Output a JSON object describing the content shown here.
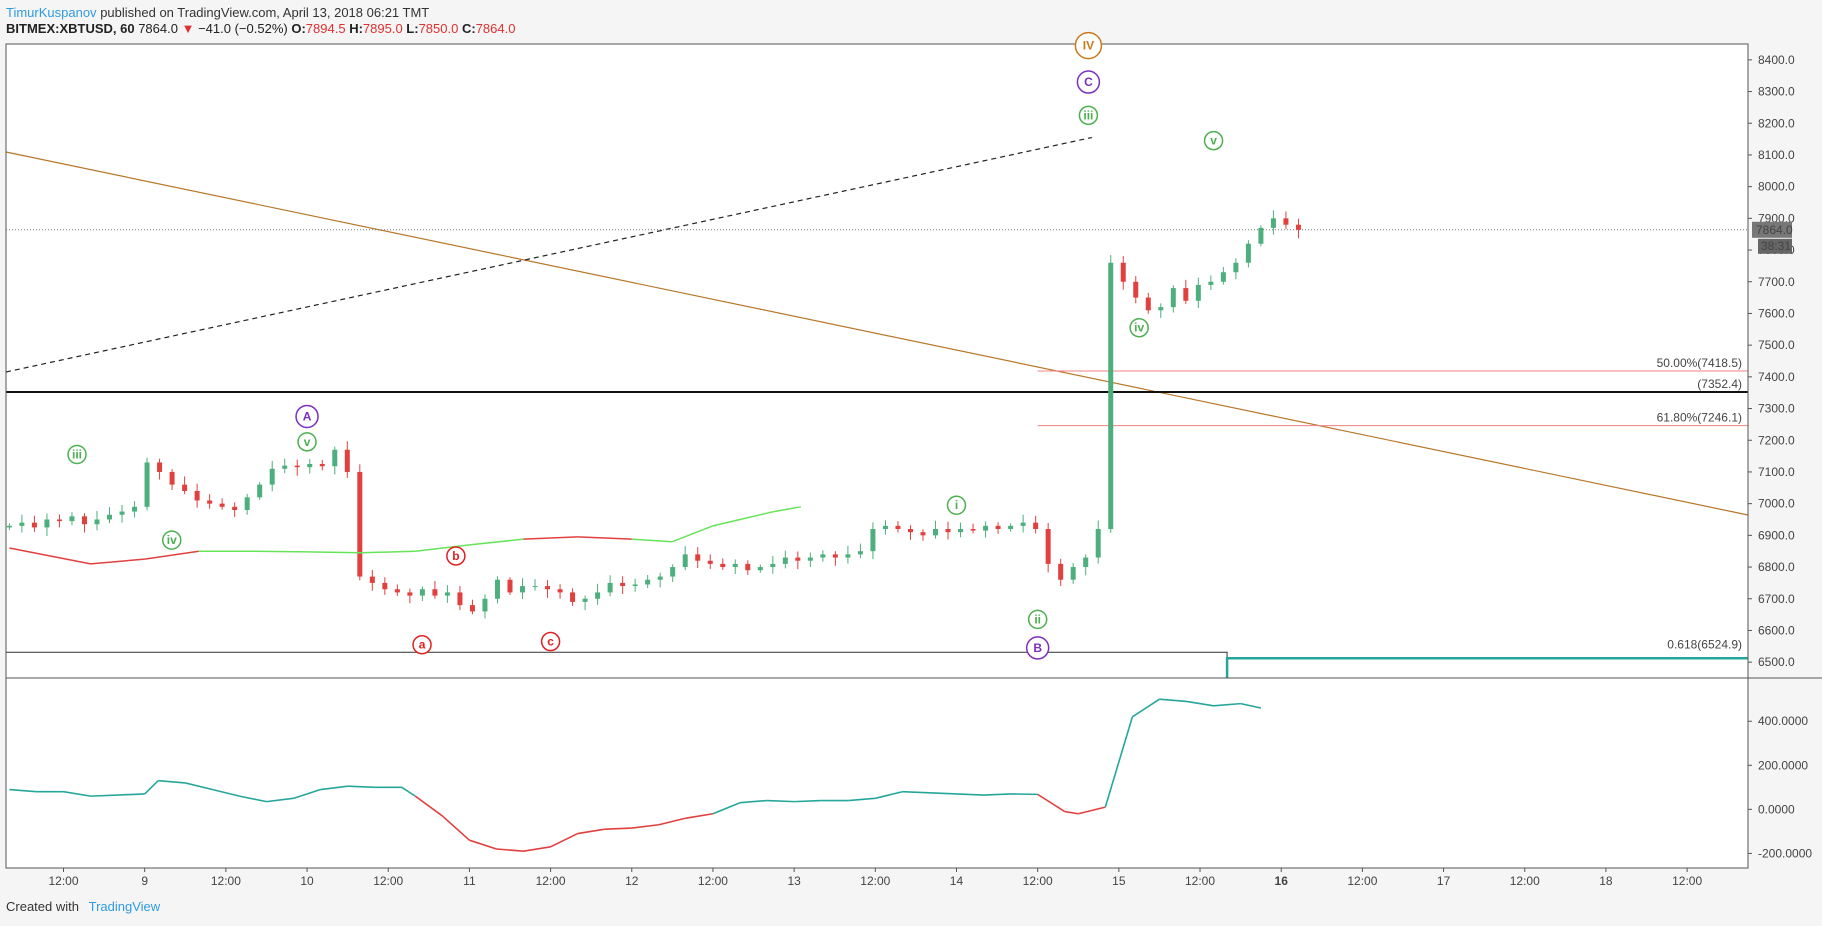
{
  "header": {
    "author": "TimurKuspanov",
    "published_text": "published on TradingView.com, April 13, 2018 06:21 TMT"
  },
  "symbol_bar": {
    "symbol": "BITMEX:XBTUSD, 60",
    "last": "7864.0",
    "change_arrow": "▼",
    "change": "−41.0 (−0.52%)",
    "o_label": "O:",
    "o_value": "7894.5",
    "h_label": "H:",
    "h_value": "7895.0",
    "l_label": "L:",
    "l_value": "7850.0",
    "c_label": "C:",
    "c_value": "7864.0"
  },
  "footer": {
    "created_with": "Created with",
    "brand": "TradingView"
  },
  "colors": {
    "up": "#4caf7d",
    "down": "#e0413f",
    "ma_up": "#67e35a",
    "ma_down": "#e0413f",
    "trendline": "#b8772a",
    "fib": "#f08080",
    "teal": "#26a69a",
    "wave_green": "#4caf50",
    "wave_red": "#e02020",
    "wave_purple": "#7b2fbe",
    "wave_orange": "#c77a1a"
  },
  "chart_data": {
    "type": "candlestick",
    "price_axis": {
      "ylim": [
        6450,
        8450
      ],
      "ticks": [
        "8400.0",
        "8300.0",
        "8200.0",
        "8100.0",
        "8000.0",
        "7900.0",
        "7800.0",
        "7700.0",
        "7600.0",
        "7500.0",
        "7400.0",
        "7300.0",
        "7200.0",
        "7100.0",
        "7000.0",
        "6900.0",
        "6800.0",
        "6700.0",
        "6600.0",
        "6500.0"
      ],
      "tick_values": [
        8400,
        8300,
        8200,
        8100,
        8000,
        7900,
        7800,
        7700,
        7600,
        7500,
        7400,
        7300,
        7200,
        7100,
        7000,
        6900,
        6800,
        6700,
        6600,
        6500
      ],
      "last_price_label": "7864.0",
      "countdown_label": "38:31"
    },
    "time_axis": {
      "labels": [
        "12:00",
        "9",
        "12:00",
        "10",
        "12:00",
        "11",
        "12:00",
        "12",
        "12:00",
        "13",
        "12:00",
        "14",
        "12:00",
        "15",
        "12:00",
        "16",
        "12:00",
        "17",
        "12:00",
        "18",
        "12:00"
      ],
      "bold_index": 15,
      "x_hours": [
        12,
        24,
        36,
        48,
        60,
        72,
        84,
        96,
        108,
        120,
        132,
        144,
        156,
        168,
        180,
        192,
        204,
        216,
        228,
        240,
        252
      ],
      "xlim_hours": [
        3.5,
        261
      ]
    },
    "candles_hourly_close": [
      6930,
      6940,
      6925,
      6950,
      6945,
      6960,
      6935,
      6950,
      6965,
      6975,
      6990,
      7130,
      7100,
      7060,
      7040,
      7010,
      7000,
      6990,
      6980,
      7020,
      7060,
      7110,
      7120,
      7115,
      7125,
      7118,
      7170,
      7100,
      6770,
      6750,
      6730,
      6720,
      6710,
      6730,
      6710,
      6720,
      6680,
      6660,
      6700,
      6760,
      6720,
      6740,
      6740,
      6730,
      6720,
      6690,
      6700,
      6720,
      6750,
      6740,
      6745,
      6760,
      6770,
      6800,
      6840,
      6820,
      6810,
      6800,
      6810,
      6790,
      6800,
      6810,
      6830,
      6820,
      6830,
      6840,
      6830,
      6840,
      6850,
      6920,
      6930,
      6920,
      6910,
      6900,
      6920,
      6910,
      6920,
      6915,
      6930,
      6920,
      6930,
      6940,
      6920,
      6810,
      6760,
      6800,
      6830,
      6920,
      7760,
      7700,
      7650,
      7610,
      7620,
      7680,
      7640,
      7690,
      7700,
      7730,
      7760,
      7820,
      7870,
      7900,
      7880,
      7864
    ],
    "moving_average": [
      [
        4,
        6860
      ],
      [
        16,
        6810
      ],
      [
        24,
        6825
      ],
      [
        32,
        6850
      ],
      [
        40,
        6850
      ],
      [
        48,
        6848
      ],
      [
        56,
        6845
      ],
      [
        64,
        6850
      ],
      [
        72,
        6870
      ],
      [
        80,
        6888
      ],
      [
        88,
        6895
      ],
      [
        96,
        6888
      ],
      [
        102,
        6880
      ],
      [
        108,
        6930
      ],
      [
        112,
        6950
      ],
      [
        117,
        6975
      ],
      [
        121,
        6990
      ]
    ],
    "oscillator": {
      "ylim": [
        -230,
        560
      ],
      "ticks": [
        "400.0000",
        "200.0000",
        "0.0000",
        "-200.0000"
      ],
      "tick_values": [
        400,
        200,
        0,
        -200
      ],
      "values": [
        [
          4,
          90
        ],
        [
          8,
          80
        ],
        [
          12,
          80
        ],
        [
          16,
          60
        ],
        [
          20,
          65
        ],
        [
          24,
          70
        ],
        [
          26,
          130
        ],
        [
          30,
          120
        ],
        [
          34,
          90
        ],
        [
          38,
          60
        ],
        [
          42,
          35
        ],
        [
          46,
          50
        ],
        [
          50,
          90
        ],
        [
          54,
          105
        ],
        [
          58,
          100
        ],
        [
          62,
          100
        ],
        [
          64,
          60
        ],
        [
          68,
          -30
        ],
        [
          72,
          -140
        ],
        [
          76,
          -180
        ],
        [
          80,
          -190
        ],
        [
          84,
          -170
        ],
        [
          88,
          -110
        ],
        [
          92,
          -90
        ],
        [
          96,
          -85
        ],
        [
          100,
          -70
        ],
        [
          104,
          -40
        ],
        [
          108,
          -20
        ],
        [
          112,
          30
        ],
        [
          116,
          40
        ],
        [
          120,
          35
        ],
        [
          124,
          40
        ],
        [
          128,
          40
        ],
        [
          132,
          50
        ],
        [
          136,
          80
        ],
        [
          140,
          75
        ],
        [
          144,
          70
        ],
        [
          148,
          65
        ],
        [
          152,
          70
        ],
        [
          156,
          68
        ],
        [
          160,
          -10
        ],
        [
          162,
          -20
        ],
        [
          166,
          10
        ],
        [
          170,
          420
        ],
        [
          174,
          500
        ],
        [
          178,
          490
        ],
        [
          182,
          470
        ],
        [
          186,
          480
        ],
        [
          189,
          460
        ]
      ]
    },
    "levels": [
      {
        "label": "(7352.4)",
        "value": 7352.4
      },
      {
        "label": "50.00%(7418.5)",
        "value": 7418.5
      },
      {
        "label": "61.80%(7246.1)",
        "value": 7246.1
      },
      {
        "label": "0.618(6524.9)",
        "value": 6524.9
      }
    ],
    "wave_labels": [
      {
        "text": "IV",
        "x": 163.5,
        "y": 8445
      },
      {
        "text": "C",
        "x": 163.5,
        "y": 8330
      },
      {
        "text": "iii",
        "x": 163.5,
        "y": 8225
      },
      {
        "text": "v",
        "x": 182,
        "y": 8145
      },
      {
        "text": "iv",
        "x": 171,
        "y": 7555
      },
      {
        "text": "A",
        "x": 48,
        "y": 7275
      },
      {
        "text": "v",
        "x": 48,
        "y": 7195
      },
      {
        "text": "iii",
        "x": 14,
        "y": 7155
      },
      {
        "text": "iv",
        "x": 28,
        "y": 6885
      },
      {
        "text": "b",
        "x": 70,
        "y": 6835
      },
      {
        "text": "a",
        "x": 65,
        "y": 6555
      },
      {
        "text": "c",
        "x": 84,
        "y": 6565
      },
      {
        "text": "i",
        "x": 144,
        "y": 6995
      },
      {
        "text": "ii",
        "x": 156,
        "y": 6635
      },
      {
        "text": "B",
        "x": 156,
        "y": 6545
      }
    ]
  }
}
